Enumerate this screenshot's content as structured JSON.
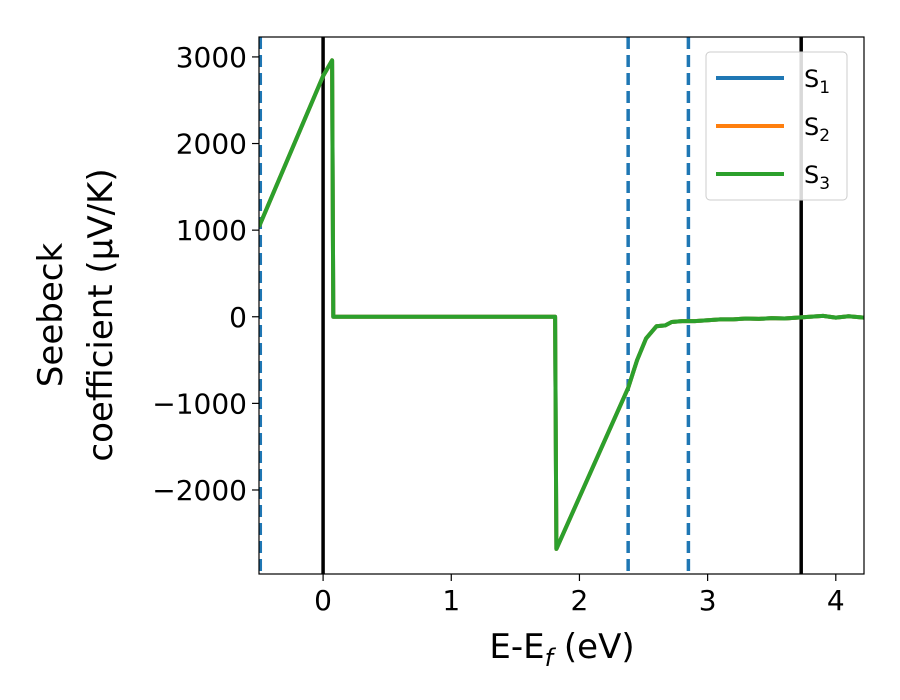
{
  "chart_data": {
    "type": "line",
    "xlabel": {
      "main": "E-E",
      "sub": "f",
      "unit": " (eV)"
    },
    "ylabel": {
      "line1": "Seebeck",
      "line2": "coefficient  (μV/K)"
    },
    "xlim": [
      -0.5,
      4.22
    ],
    "ylim": [
      -2970,
      3230
    ],
    "x_ticks": [
      0,
      1,
      2,
      3,
      4
    ],
    "x_tick_labels": [
      "0",
      "1",
      "2",
      "3",
      "4"
    ],
    "y_ticks": [
      3000,
      2000,
      1000,
      0,
      -1000,
      -2000
    ],
    "y_tick_labels": [
      "3000",
      "2000",
      "1000",
      "0",
      "−1000",
      "−2000"
    ],
    "grid": false,
    "legend_position": "top-right",
    "series": [
      {
        "name": "S",
        "sub": "1",
        "color": "#1f77b4",
        "x": [
          -0.5,
          0.0,
          0.07,
          0.08,
          1.81,
          1.82,
          2.38,
          2.45,
          2.52,
          2.6,
          2.67,
          2.72,
          2.8,
          2.9,
          3.0,
          3.1,
          3.2,
          3.3,
          3.4,
          3.5,
          3.6,
          3.7,
          3.8,
          3.9,
          4.0,
          4.1,
          4.22
        ],
        "y": [
          1040,
          2780,
          2960,
          0,
          0,
          -2680,
          -820,
          -500,
          -250,
          -110,
          -100,
          -60,
          -50,
          -50,
          -40,
          -30,
          -30,
          -20,
          -25,
          -15,
          -20,
          -10,
          0,
          10,
          -10,
          5,
          -10
        ]
      },
      {
        "name": "S",
        "sub": "2",
        "color": "#ff7f0e",
        "x": [
          -0.5,
          0.0,
          0.07,
          0.08,
          1.81,
          1.82,
          2.38,
          2.45,
          2.52,
          2.6,
          2.67,
          2.72,
          2.8,
          2.9,
          3.0,
          3.1,
          3.2,
          3.3,
          3.4,
          3.5,
          3.6,
          3.7,
          3.8,
          3.9,
          4.0,
          4.1,
          4.22
        ],
        "y": [
          1040,
          2780,
          2960,
          0,
          0,
          -2680,
          -820,
          -500,
          -250,
          -110,
          -100,
          -60,
          -50,
          -50,
          -40,
          -30,
          -30,
          -20,
          -25,
          -15,
          -20,
          -10,
          0,
          10,
          -10,
          5,
          -10
        ]
      },
      {
        "name": "S",
        "sub": "3",
        "color": "#2ca02c",
        "x": [
          -0.5,
          0.0,
          0.07,
          0.08,
          1.81,
          1.82,
          2.38,
          2.45,
          2.52,
          2.6,
          2.67,
          2.72,
          2.8,
          2.9,
          3.0,
          3.1,
          3.2,
          3.3,
          3.4,
          3.5,
          3.6,
          3.7,
          3.8,
          3.9,
          4.0,
          4.1,
          4.22
        ],
        "y": [
          1040,
          2780,
          2960,
          0,
          0,
          -2680,
          -820,
          -500,
          -250,
          -110,
          -100,
          -60,
          -50,
          -50,
          -40,
          -30,
          -30,
          -20,
          -25,
          -15,
          -20,
          -10,
          0,
          10,
          -10,
          5,
          -10
        ]
      }
    ],
    "vlines_solid": {
      "color": "#000000",
      "x": [
        0.0,
        3.73
      ]
    },
    "vlines_dashed": {
      "color": "#1f77b4",
      "x": [
        -0.49,
        2.38,
        2.85
      ]
    }
  }
}
